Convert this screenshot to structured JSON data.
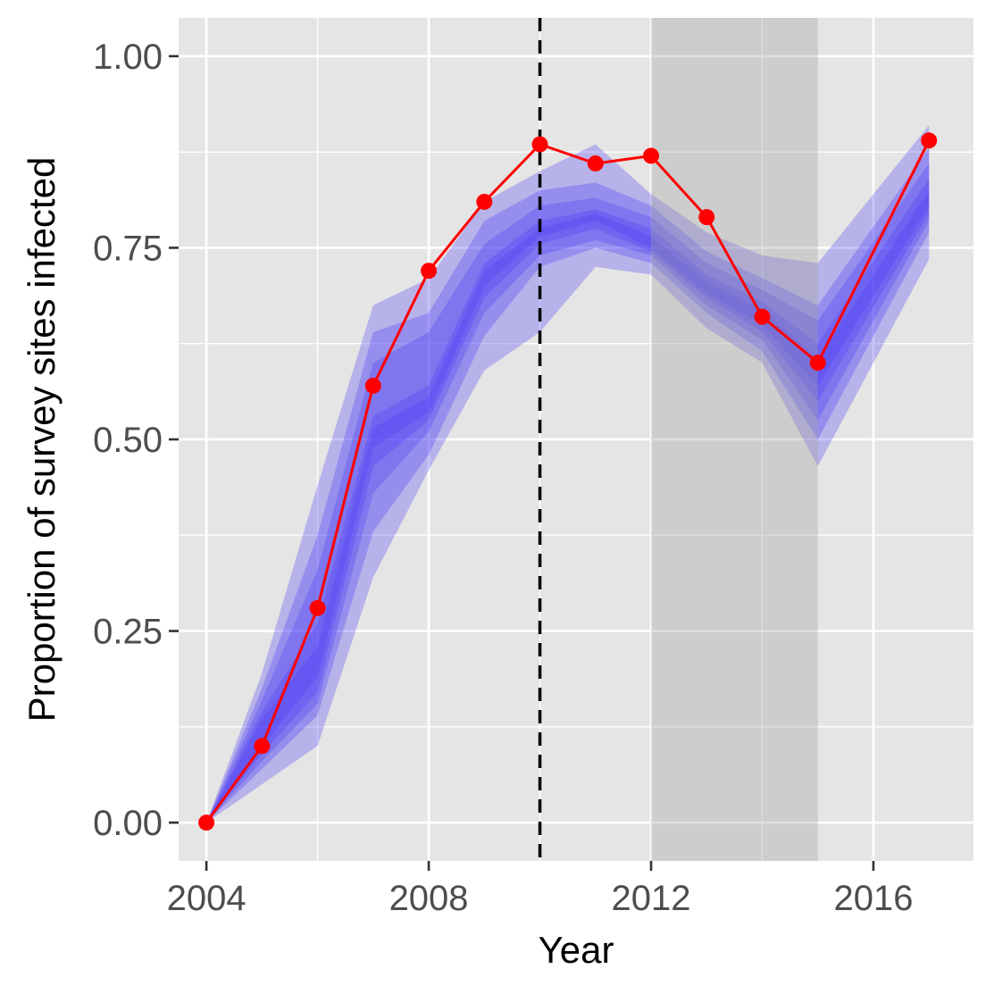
{
  "chart_data": {
    "type": "line",
    "xlabel": "Year",
    "ylabel": "Proportion of survey sites infected",
    "xlim": [
      2003.5,
      2017.8
    ],
    "ylim": [
      -0.05,
      1.05
    ],
    "x_ticks": [
      2004,
      2008,
      2012,
      2016
    ],
    "x_tick_labels": [
      "2004",
      "2008",
      "2012",
      "2016"
    ],
    "y_ticks": [
      0,
      0.25,
      0.5,
      0.75,
      1.0
    ],
    "y_tick_labels": [
      "0.00",
      "0.25",
      "0.50",
      "0.75",
      "1.00"
    ],
    "grid": true,
    "panel_background": "#e5e5e5",
    "grid_color": "#ffffff",
    "shaded_period": {
      "x_start": 2012,
      "x_end": 2015,
      "color": "#a0a0a0"
    },
    "reference_line": {
      "x": 2010,
      "style": "dashed",
      "color": "#000000"
    },
    "observed": {
      "color": "#ff0000",
      "x": [
        2004,
        2005,
        2006,
        2007,
        2008,
        2009,
        2010,
        2011,
        2012,
        2013,
        2014,
        2015,
        2017
      ],
      "y": [
        0.0,
        0.1,
        0.28,
        0.57,
        0.72,
        0.81,
        0.885,
        0.86,
        0.87,
        0.79,
        0.66,
        0.6,
        0.89
      ]
    },
    "prediction_bands": {
      "color": "#4b3cf5",
      "x": [
        2004,
        2005,
        2006,
        2007,
        2008,
        2009,
        2010,
        2011,
        2012,
        2013,
        2014,
        2015,
        2017
      ],
      "bands": [
        {
          "lower": [
            0.0,
            0.05,
            0.1,
            0.32,
            0.46,
            0.59,
            0.64,
            0.725,
            0.715,
            0.645,
            0.6,
            0.465,
            0.735
          ],
          "upper": [
            0.0,
            0.195,
            0.44,
            0.675,
            0.71,
            0.81,
            0.85,
            0.885,
            0.82,
            0.77,
            0.74,
            0.73,
            0.91
          ]
        },
        {
          "lower": [
            0.0,
            0.07,
            0.14,
            0.38,
            0.48,
            0.635,
            0.725,
            0.75,
            0.73,
            0.665,
            0.615,
            0.5,
            0.77
          ],
          "upper": [
            0.0,
            0.175,
            0.375,
            0.64,
            0.665,
            0.785,
            0.825,
            0.835,
            0.805,
            0.745,
            0.71,
            0.675,
            0.88
          ]
        },
        {
          "lower": [
            0.0,
            0.08,
            0.155,
            0.43,
            0.51,
            0.665,
            0.74,
            0.76,
            0.74,
            0.675,
            0.63,
            0.525,
            0.785
          ],
          "upper": [
            0.0,
            0.16,
            0.33,
            0.6,
            0.64,
            0.755,
            0.805,
            0.815,
            0.79,
            0.73,
            0.695,
            0.655,
            0.86
          ]
        },
        {
          "lower": [
            0.0,
            0.09,
            0.17,
            0.465,
            0.525,
            0.685,
            0.755,
            0.775,
            0.745,
            0.685,
            0.64,
            0.55,
            0.795
          ],
          "upper": [
            0.0,
            0.145,
            0.26,
            0.53,
            0.57,
            0.73,
            0.785,
            0.8,
            0.775,
            0.715,
            0.68,
            0.625,
            0.84
          ]
        },
        {
          "lower": [
            0.0,
            0.1,
            0.19,
            0.49,
            0.535,
            0.7,
            0.765,
            0.785,
            0.75,
            0.69,
            0.65,
            0.57,
            0.805
          ],
          "upper": [
            0.0,
            0.135,
            0.23,
            0.515,
            0.555,
            0.72,
            0.775,
            0.795,
            0.765,
            0.705,
            0.67,
            0.605,
            0.825
          ]
        }
      ]
    }
  }
}
